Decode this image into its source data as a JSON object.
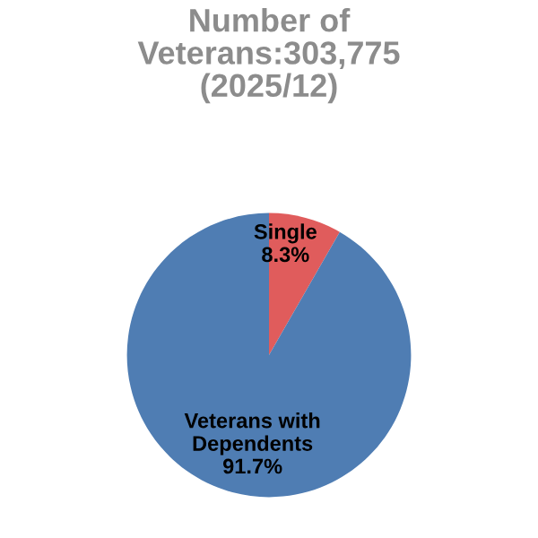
{
  "chart_data": {
    "type": "pie",
    "title": "Number of\nVeterans:303,775\n(2025/12)",
    "categories": [
      "Single",
      "Veterans with\nDependents"
    ],
    "values": [
      8.3,
      91.7
    ],
    "value_labels": [
      "8.3%",
      "91.7%"
    ],
    "colors": [
      "#e05c5c",
      "#4f7db3"
    ]
  }
}
